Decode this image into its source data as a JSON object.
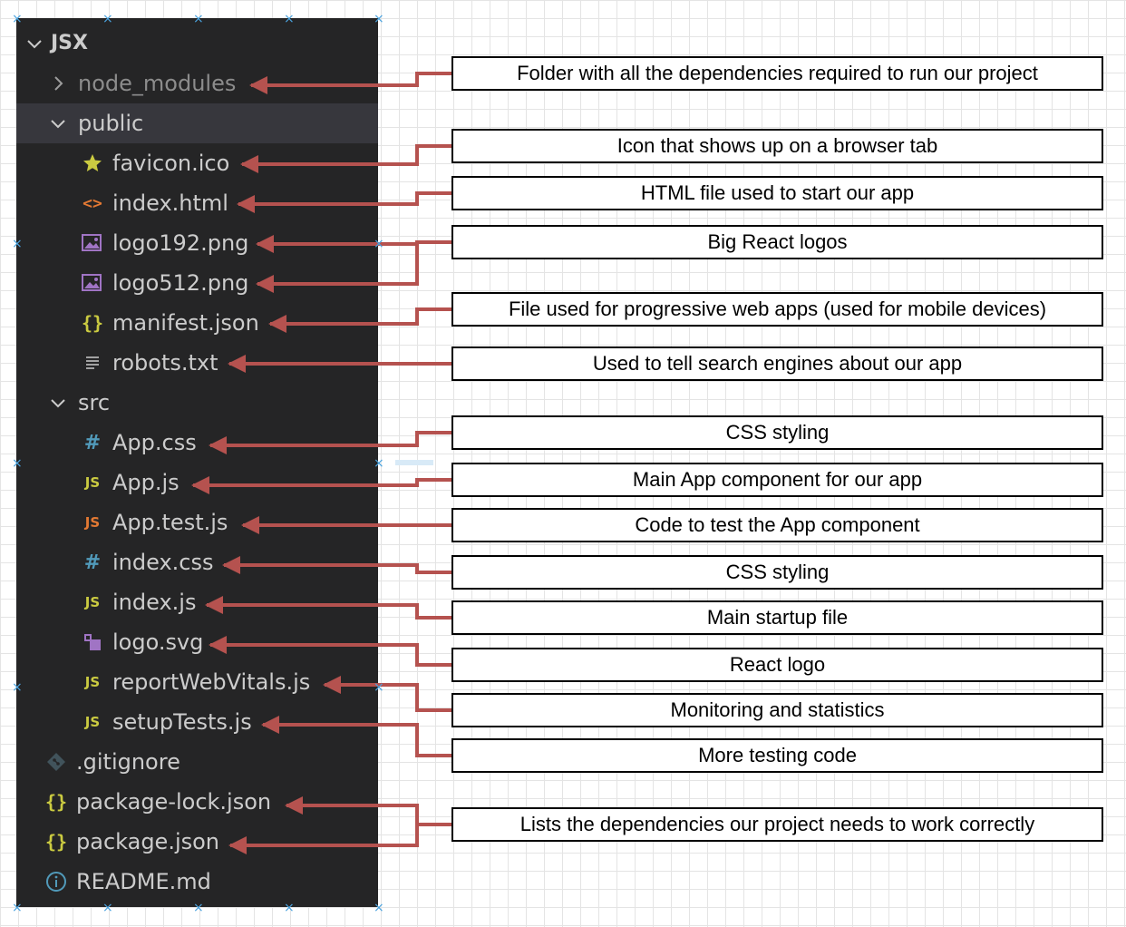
{
  "explorer": {
    "root": "JSX",
    "node_modules": "node_modules",
    "public": {
      "name": "public",
      "files": [
        "favicon.ico",
        "index.html",
        "logo192.png",
        "logo512.png",
        "manifest.json",
        "robots.txt"
      ]
    },
    "src": {
      "name": "src",
      "files": [
        "App.css",
        "App.js",
        "App.test.js",
        "index.css",
        "index.js",
        "logo.svg",
        "reportWebVitals.js",
        "setupTests.js"
      ]
    },
    "root_files": [
      ".gitignore",
      "package-lock.json",
      "package.json",
      "README.md"
    ]
  },
  "descriptions": [
    "Folder with all the dependencies required to run our project",
    "Icon that shows up on a browser tab",
    "HTML file used to start our app",
    "Big React logos",
    "File used for progressive web apps (used for mobile devices)",
    "Used to tell search engines about our app",
    "CSS styling",
    "Main App component for our app",
    "Code to test the App component",
    "CSS styling",
    "Main startup file",
    "React logo",
    "Monitoring and statistics",
    "More testing code",
    "Lists the dependencies our project needs to work correctly"
  ],
  "colors": {
    "arrow": "#b5524f",
    "panel": "#252526",
    "selected_row": "#37373d",
    "text": "#cccccc",
    "box_border": "#000000"
  },
  "icons": {
    "chevron_open": "chevron-down-icon",
    "chevron_closed": "chevron-right-icon",
    "favicon": "star-icon",
    "html": "code-brackets-icon",
    "image": "image-icon",
    "json": "braces-icon",
    "text": "lines-icon",
    "css": "hash-icon",
    "js": "js-icon",
    "svg": "svg-shapes-icon",
    "git": "git-icon",
    "info": "info-icon"
  }
}
